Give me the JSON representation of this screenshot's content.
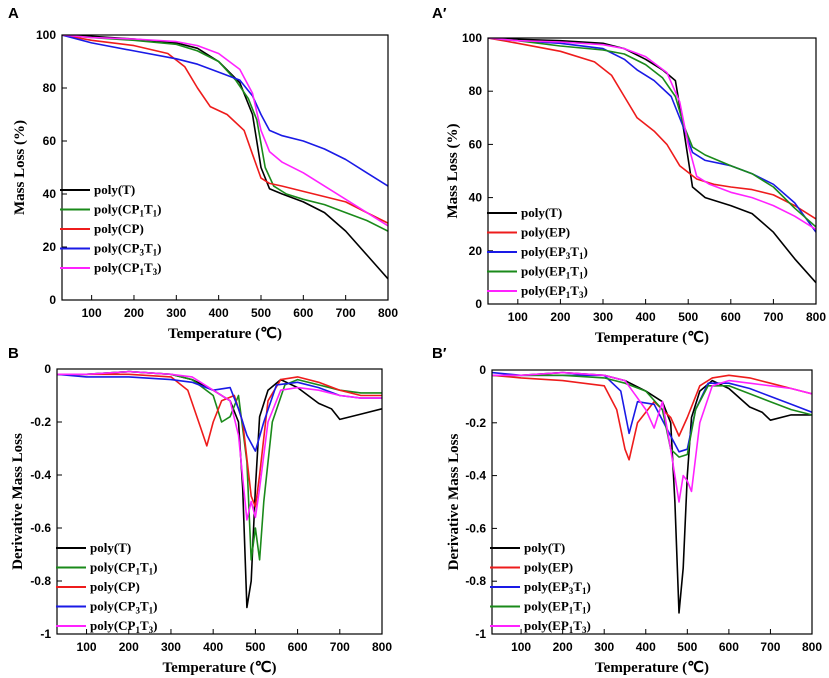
{
  "colors": {
    "black": "#000000",
    "green": "#1a8a1a",
    "red": "#ee1c1c",
    "blue": "#1a1ae6",
    "magenta": "#ff22ff"
  },
  "chart_data": [
    {
      "panel_label": "A",
      "type": "line",
      "xlabel": "Temperature (℃)",
      "ylabel": "Mass Loss (%)",
      "xlim": [
        30,
        800
      ],
      "ylim": [
        0,
        100
      ],
      "xticks": [
        "100",
        "200",
        "300",
        "400",
        "500",
        "600",
        "700",
        "800"
      ],
      "yticks": [
        "0",
        "20",
        "40",
        "60",
        "80",
        "100"
      ],
      "legend_position": "bottom-left",
      "series": [
        {
          "name": "poly(T)",
          "base": "poly(T)",
          "sub": "",
          "color": "black",
          "x": [
            30,
            100,
            200,
            300,
            350,
            400,
            450,
            480,
            500,
            520,
            550,
            600,
            650,
            700,
            750,
            800
          ],
          "y": [
            100,
            99.5,
            98.5,
            97,
            95,
            90,
            82,
            70,
            50,
            42,
            40,
            37,
            33,
            26,
            17,
            8
          ]
        },
        {
          "name": "poly(CP1T1)",
          "base": "poly(CP",
          "sub": "1T1)",
          "color": "green",
          "x": [
            30,
            100,
            200,
            300,
            350,
            400,
            440,
            470,
            490,
            510,
            530,
            560,
            600,
            650,
            700,
            750,
            800
          ],
          "y": [
            100,
            99,
            98,
            96.5,
            94,
            90,
            83,
            76,
            68,
            50,
            43,
            40,
            38,
            36,
            33,
            30,
            26
          ]
        },
        {
          "name": "poly(CP)",
          "base": "poly(CP)",
          "sub": "",
          "color": "red",
          "x": [
            30,
            100,
            200,
            280,
            320,
            350,
            380,
            420,
            460,
            480,
            500,
            520,
            550,
            600,
            650,
            700,
            750,
            800
          ],
          "y": [
            100,
            98,
            96,
            93,
            88,
            80,
            73,
            70,
            64,
            55,
            46,
            44,
            43,
            41,
            39,
            37,
            33,
            29
          ]
        },
        {
          "name": "poly(CP3T1)",
          "base": "poly(CP",
          "sub": "3T1)",
          "color": "blue",
          "x": [
            30,
            100,
            200,
            300,
            350,
            400,
            450,
            480,
            500,
            520,
            550,
            600,
            650,
            700,
            750,
            800
          ],
          "y": [
            100,
            97,
            94,
            91,
            89,
            86,
            83,
            77,
            70,
            64,
            62,
            60,
            57,
            53,
            48,
            43
          ]
        },
        {
          "name": "poly(CP1T3)",
          "base": "poly(CP",
          "sub": "1T3)",
          "color": "magenta",
          "x": [
            30,
            100,
            200,
            300,
            350,
            400,
            450,
            480,
            500,
            520,
            550,
            600,
            650,
            700,
            750,
            800
          ],
          "y": [
            100,
            99,
            98.5,
            97.5,
            96,
            93,
            87,
            78,
            64,
            56,
            52,
            48,
            43,
            38,
            33,
            28
          ]
        }
      ]
    },
    {
      "panel_label": "A′",
      "type": "line",
      "xlabel": "Temperature (℃)",
      "ylabel": "Mass Loss (%)",
      "xlim": [
        30,
        800
      ],
      "ylim": [
        0,
        100
      ],
      "xticks": [
        "100",
        "200",
        "300",
        "400",
        "500",
        "600",
        "700",
        "800"
      ],
      "yticks": [
        "0",
        "20",
        "40",
        "60",
        "80",
        "100"
      ],
      "legend_position": "bottom-left",
      "series": [
        {
          "name": "poly(T)",
          "base": "poly(T)",
          "sub": "",
          "color": "black",
          "x": [
            30,
            100,
            200,
            300,
            350,
            400,
            440,
            470,
            490,
            510,
            540,
            600,
            650,
            700,
            750,
            800
          ],
          "y": [
            100,
            99.5,
            99,
            98,
            96,
            92,
            88,
            84,
            65,
            44,
            40,
            37,
            34,
            27,
            17,
            8
          ]
        },
        {
          "name": "poly(EP)",
          "base": "poly(EP)",
          "sub": "",
          "color": "red",
          "x": [
            30,
            100,
            200,
            280,
            320,
            350,
            380,
            420,
            450,
            480,
            520,
            560,
            600,
            650,
            700,
            750,
            800
          ],
          "y": [
            100,
            98,
            95,
            91,
            86,
            78,
            70,
            65,
            60,
            52,
            47,
            45,
            44,
            43,
            41,
            37,
            32
          ]
        },
        {
          "name": "poly(EP3T1)",
          "base": "poly(EP",
          "sub": "3T1)",
          "color": "blue",
          "x": [
            30,
            100,
            200,
            300,
            350,
            380,
            420,
            460,
            490,
            510,
            540,
            600,
            650,
            700,
            750,
            800
          ],
          "y": [
            100,
            99,
            98,
            96,
            92,
            88,
            84,
            78,
            66,
            57,
            54,
            52,
            49,
            45,
            38,
            27
          ]
        },
        {
          "name": "poly(EP1T1)",
          "base": "poly(EP",
          "sub": "1T1)",
          "color": "green",
          "x": [
            30,
            100,
            200,
            300,
            350,
            400,
            440,
            470,
            490,
            510,
            540,
            600,
            650,
            700,
            750,
            800
          ],
          "y": [
            100,
            99,
            97,
            95.5,
            94,
            90,
            85,
            78,
            67,
            59,
            56,
            52,
            49,
            44,
            36,
            29
          ]
        },
        {
          "name": "poly(EP1T3)",
          "base": "poly(EP",
          "sub": "1T3)",
          "color": "magenta",
          "x": [
            30,
            100,
            200,
            300,
            350,
            400,
            450,
            480,
            500,
            520,
            550,
            600,
            650,
            700,
            750,
            800
          ],
          "y": [
            100,
            99,
            98.5,
            97.5,
            96,
            93,
            87,
            76,
            60,
            48,
            45,
            42,
            40,
            37,
            33,
            28
          ]
        }
      ]
    },
    {
      "panel_label": "B",
      "type": "line",
      "xlabel": "Temperature (℃)",
      "ylabel": "Derivative Mass Loss",
      "xlim": [
        30,
        800
      ],
      "ylim": [
        -1,
        0
      ],
      "xticks": [
        "100",
        "200",
        "300",
        "400",
        "500",
        "600",
        "700",
        "800"
      ],
      "yticks": [
        "-1",
        "-0.8",
        "-0.6",
        "-0.4",
        "-0.2",
        "0"
      ],
      "legend_position": "bottom-left",
      "series": [
        {
          "name": "poly(T)",
          "base": "poly(T)",
          "sub": "",
          "color": "black",
          "x": [
            30,
            100,
            200,
            300,
            350,
            400,
            440,
            460,
            470,
            480,
            490,
            500,
            510,
            530,
            560,
            600,
            650,
            680,
            700,
            750,
            800
          ],
          "y": [
            -0.02,
            -0.02,
            -0.01,
            -0.02,
            -0.04,
            -0.08,
            -0.12,
            -0.2,
            -0.45,
            -0.9,
            -0.8,
            -0.45,
            -0.18,
            -0.08,
            -0.04,
            -0.07,
            -0.13,
            -0.15,
            -0.19,
            -0.17,
            -0.15
          ]
        },
        {
          "name": "poly(CP1T1)",
          "base": "poly(CP",
          "sub": "1T1)",
          "color": "green",
          "x": [
            30,
            100,
            200,
            300,
            350,
            400,
            420,
            440,
            460,
            480,
            490,
            500,
            510,
            520,
            540,
            570,
            600,
            650,
            700,
            750,
            800
          ],
          "y": [
            -0.02,
            -0.02,
            -0.01,
            -0.02,
            -0.04,
            -0.1,
            -0.2,
            -0.18,
            -0.1,
            -0.35,
            -0.72,
            -0.6,
            -0.72,
            -0.5,
            -0.2,
            -0.06,
            -0.04,
            -0.06,
            -0.08,
            -0.09,
            -0.09
          ]
        },
        {
          "name": "poly(CP)",
          "base": "poly(CP)",
          "sub": "",
          "color": "red",
          "x": [
            30,
            100,
            200,
            300,
            340,
            370,
            385,
            400,
            420,
            450,
            470,
            490,
            500,
            510,
            530,
            560,
            600,
            650,
            700,
            750,
            800
          ],
          "y": [
            -0.02,
            -0.02,
            -0.02,
            -0.03,
            -0.08,
            -0.22,
            -0.29,
            -0.2,
            -0.12,
            -0.1,
            -0.2,
            -0.48,
            -0.52,
            -0.4,
            -0.12,
            -0.04,
            -0.03,
            -0.05,
            -0.08,
            -0.1,
            -0.1
          ]
        },
        {
          "name": "poly(CP3T1)",
          "base": "poly(CP",
          "sub": "3T1)",
          "color": "blue",
          "x": [
            30,
            100,
            200,
            300,
            350,
            400,
            440,
            460,
            480,
            500,
            520,
            550,
            600,
            650,
            700,
            750,
            800
          ],
          "y": [
            -0.02,
            -0.03,
            -0.03,
            -0.04,
            -0.05,
            -0.08,
            -0.07,
            -0.15,
            -0.25,
            -0.31,
            -0.2,
            -0.06,
            -0.05,
            -0.07,
            -0.1,
            -0.11,
            -0.11
          ]
        },
        {
          "name": "poly(CP1T3)",
          "base": "poly(CP",
          "sub": "1T3)",
          "color": "magenta",
          "x": [
            30,
            100,
            200,
            300,
            350,
            400,
            440,
            460,
            480,
            490,
            500,
            510,
            530,
            560,
            600,
            650,
            700,
            750,
            800
          ],
          "y": [
            -0.02,
            -0.02,
            -0.01,
            -0.02,
            -0.03,
            -0.08,
            -0.12,
            -0.25,
            -0.57,
            -0.5,
            -0.56,
            -0.45,
            -0.2,
            -0.08,
            -0.07,
            -0.08,
            -0.1,
            -0.11,
            -0.11
          ]
        }
      ]
    },
    {
      "panel_label": "B′",
      "type": "line",
      "xlabel": "Temperature (℃)",
      "ylabel": "Derivative Mass Loss",
      "xlim": [
        30,
        800
      ],
      "ylim": [
        -1,
        0
      ],
      "xticks": [
        "100",
        "200",
        "300",
        "400",
        "500",
        "600",
        "700",
        "800"
      ],
      "yticks": [
        "-1",
        "-0.8",
        "-0.6",
        "-0.4",
        "-0.2",
        "0"
      ],
      "legend_position": "bottom-left",
      "series": [
        {
          "name": "poly(T)",
          "base": "poly(T)",
          "sub": "",
          "color": "black",
          "x": [
            30,
            100,
            200,
            300,
            350,
            400,
            440,
            460,
            470,
            480,
            490,
            500,
            510,
            530,
            560,
            600,
            650,
            680,
            700,
            750,
            800
          ],
          "y": [
            -0.02,
            -0.02,
            -0.01,
            -0.02,
            -0.04,
            -0.08,
            -0.12,
            -0.2,
            -0.5,
            -0.92,
            -0.75,
            -0.4,
            -0.18,
            -0.08,
            -0.04,
            -0.07,
            -0.14,
            -0.16,
            -0.19,
            -0.17,
            -0.17
          ]
        },
        {
          "name": "poly(EP)",
          "base": "poly(EP)",
          "sub": "",
          "color": "red",
          "x": [
            30,
            100,
            200,
            300,
            330,
            350,
            360,
            380,
            420,
            460,
            480,
            500,
            530,
            560,
            600,
            650,
            700,
            750,
            800
          ],
          "y": [
            -0.02,
            -0.03,
            -0.04,
            -0.06,
            -0.15,
            -0.3,
            -0.34,
            -0.2,
            -0.12,
            -0.18,
            -0.25,
            -0.18,
            -0.06,
            -0.03,
            -0.02,
            -0.03,
            -0.05,
            -0.07,
            -0.09
          ]
        },
        {
          "name": "poly(EP3T1)",
          "base": "poly(EP",
          "sub": "3T1)",
          "color": "blue",
          "x": [
            30,
            100,
            200,
            300,
            340,
            360,
            380,
            420,
            460,
            480,
            500,
            520,
            550,
            600,
            650,
            700,
            750,
            800
          ],
          "y": [
            -0.01,
            -0.02,
            -0.02,
            -0.02,
            -0.08,
            -0.24,
            -0.12,
            -0.13,
            -0.25,
            -0.31,
            -0.3,
            -0.15,
            -0.05,
            -0.05,
            -0.07,
            -0.1,
            -0.13,
            -0.16
          ]
        },
        {
          "name": "poly(EP1T1)",
          "base": "poly(EP",
          "sub": "1T1)",
          "color": "green",
          "x": [
            30,
            100,
            200,
            300,
            350,
            400,
            440,
            460,
            480,
            500,
            520,
            550,
            600,
            650,
            700,
            750,
            800
          ],
          "y": [
            -0.02,
            -0.02,
            -0.02,
            -0.03,
            -0.05,
            -0.08,
            -0.15,
            -0.3,
            -0.33,
            -0.32,
            -0.15,
            -0.06,
            -0.06,
            -0.09,
            -0.12,
            -0.15,
            -0.17
          ]
        },
        {
          "name": "poly(EP1T3)",
          "base": "poly(EP",
          "sub": "1T3)",
          "color": "magenta",
          "x": [
            30,
            100,
            200,
            300,
            350,
            400,
            420,
            440,
            460,
            480,
            490,
            500,
            510,
            530,
            560,
            600,
            650,
            700,
            750,
            800
          ],
          "y": [
            -0.02,
            -0.02,
            -0.01,
            -0.02,
            -0.04,
            -0.15,
            -0.22,
            -0.12,
            -0.3,
            -0.5,
            -0.4,
            -0.42,
            -0.46,
            -0.2,
            -0.06,
            -0.04,
            -0.05,
            -0.06,
            -0.07,
            -0.09
          ]
        }
      ]
    }
  ]
}
